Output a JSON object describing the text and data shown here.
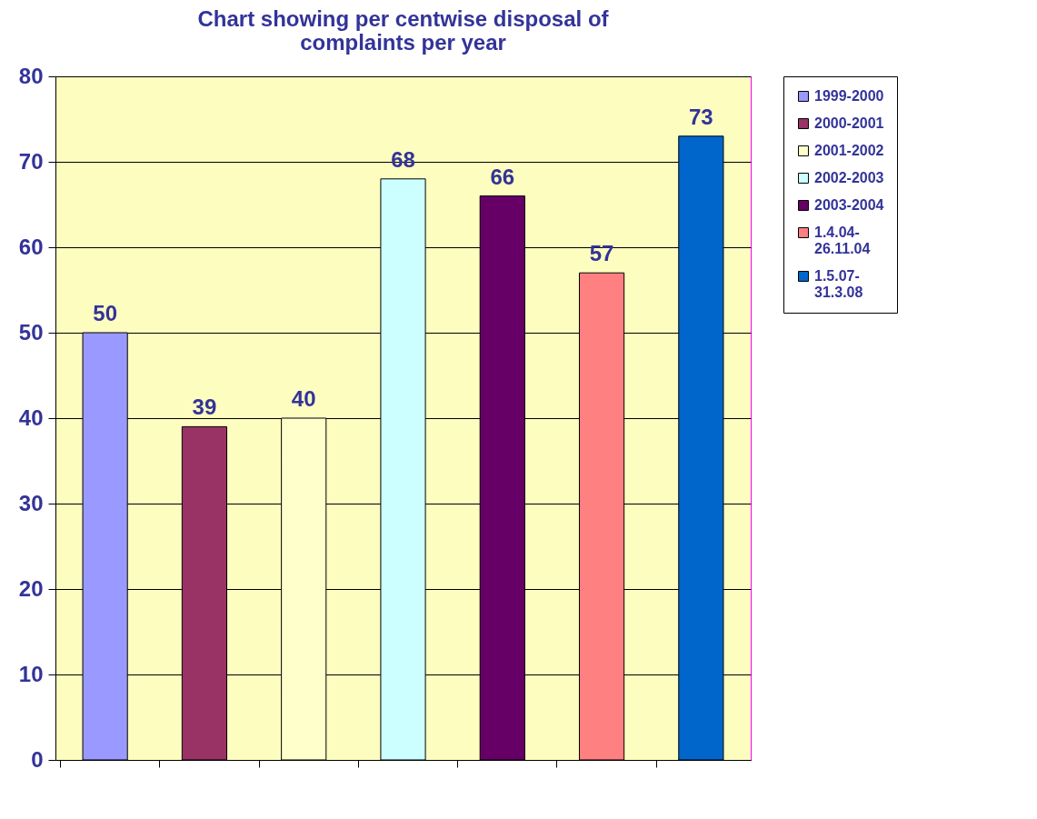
{
  "chart_data": {
    "type": "bar",
    "title": "Chart showing per centwise disposal of complaints per year",
    "categories": [
      null,
      null,
      null,
      null,
      null,
      null,
      null
    ],
    "series": [
      {
        "name": "1999-2000",
        "color": "#9999ff",
        "values": [
          50,
          null,
          null,
          null,
          null,
          null,
          null
        ]
      },
      {
        "name": "2000-2001",
        "color": "#993366",
        "values": [
          null,
          39,
          null,
          null,
          null,
          null,
          null
        ]
      },
      {
        "name": "2001-2002",
        "color": "#ffffcc",
        "values": [
          null,
          null,
          40,
          null,
          null,
          null,
          null
        ]
      },
      {
        "name": "2002-2003",
        "color": "#ccffff",
        "values": [
          null,
          null,
          null,
          68,
          null,
          null,
          null
        ]
      },
      {
        "name": "2003-2004",
        "color": "#660066",
        "values": [
          null,
          null,
          null,
          null,
          66,
          null,
          null
        ]
      },
      {
        "name": "1.4.04-26.11.04",
        "color": "#ff8080",
        "values": [
          null,
          null,
          null,
          null,
          null,
          57,
          null
        ]
      },
      {
        "name": "1.5.07-31.3.08",
        "color": "#0066cc",
        "values": [
          null,
          null,
          null,
          null,
          null,
          null,
          73
        ]
      }
    ],
    "ylim": [
      0,
      80
    ],
    "yticks": [
      0,
      10,
      20,
      30,
      40,
      50,
      60,
      70,
      80
    ],
    "grid": "y",
    "legend": "right",
    "data_labels": true,
    "tick_labels": "y"
  }
}
